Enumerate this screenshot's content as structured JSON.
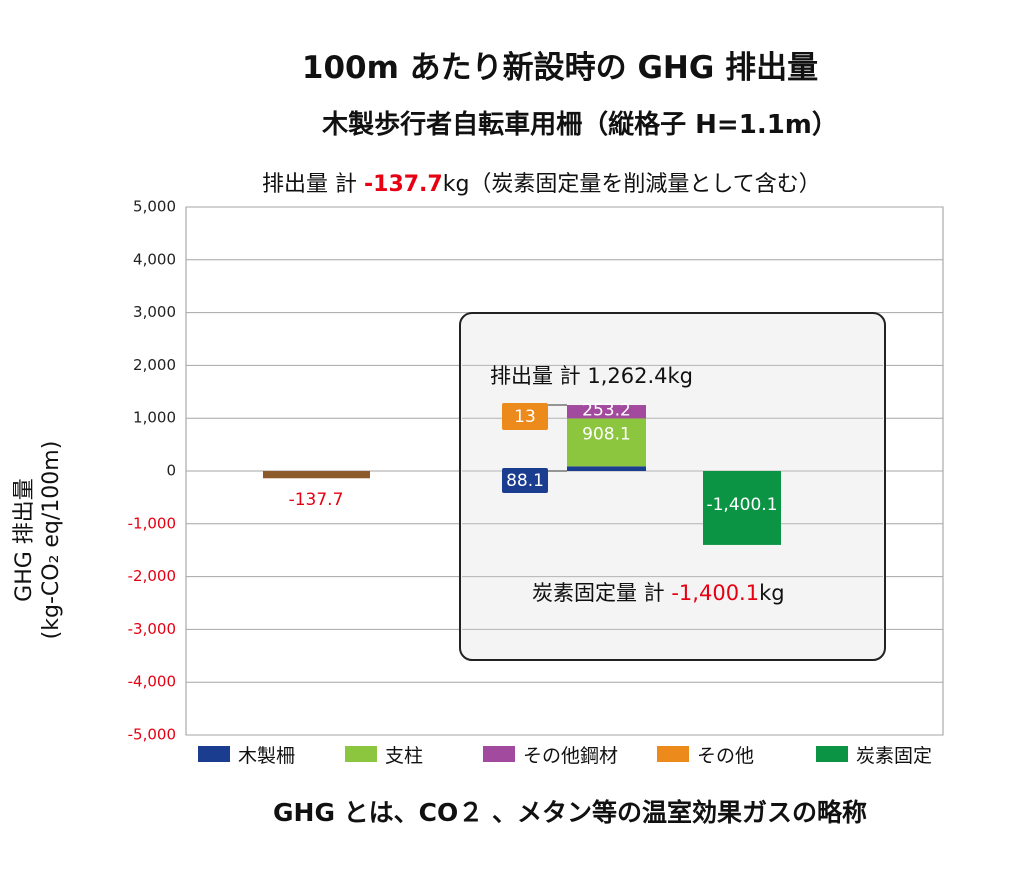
{
  "title": "100m あたり新設時の GHG 排出量",
  "subtitle": "木製歩行者自転車用柵（縦格子 H=1.1m）",
  "net_total": {
    "prefix": "排出量 計 ",
    "value": "-137.7",
    "unit": "kg（炭素固定量を削減量として含む）"
  },
  "emission_total": "排出量 計 1,262.4kg",
  "fixation_total": {
    "prefix": "炭素固定量 計 ",
    "value": "-1,400.1",
    "unit": "kg"
  },
  "footer": "GHG とは、CO２ 、メタン等の温室効果ガスの略称",
  "colors": {
    "wood": "#1a3d8f",
    "post": "#8cc63f",
    "other_steel": "#a24a9e",
    "other": "#ec8a1c",
    "carbon": "#0b9444",
    "net": "#8c5a2b",
    "negative_tick": "#e60012",
    "highlight_red": "#e60012"
  },
  "chart_data": {
    "type": "bar",
    "ylabel": "GHG 排出量",
    "ylabel_unit": "(kg-CO₂ eq/100m)",
    "ylim": [
      -5000,
      5000
    ],
    "yticks": [
      "5,000",
      "4,000",
      "3,000",
      "2,000",
      "1,000",
      "0",
      "-1,000",
      "-2,000",
      "-3,000",
      "-4,000",
      "-5,000"
    ],
    "ytick_values": [
      5000,
      4000,
      3000,
      2000,
      1000,
      0,
      -1000,
      -2000,
      -3000,
      -4000,
      -5000
    ],
    "net_value": -137.7,
    "net_label": "-137.7",
    "legend": [
      "木製柵",
      "支柱",
      "その他鋼材",
      "その他",
      "炭素固定"
    ],
    "series": [
      {
        "name": "木製柵",
        "value": 88.1,
        "label": "88.1"
      },
      {
        "name": "支柱",
        "value": 908.1,
        "label": "908.1"
      },
      {
        "name": "その他鋼材",
        "value": 253.2,
        "label": "253.2"
      },
      {
        "name": "その他",
        "value": 13,
        "label": "13"
      },
      {
        "name": "炭素固定",
        "value": -1400.1,
        "label": "-1,400.1"
      }
    ],
    "grid": true
  }
}
